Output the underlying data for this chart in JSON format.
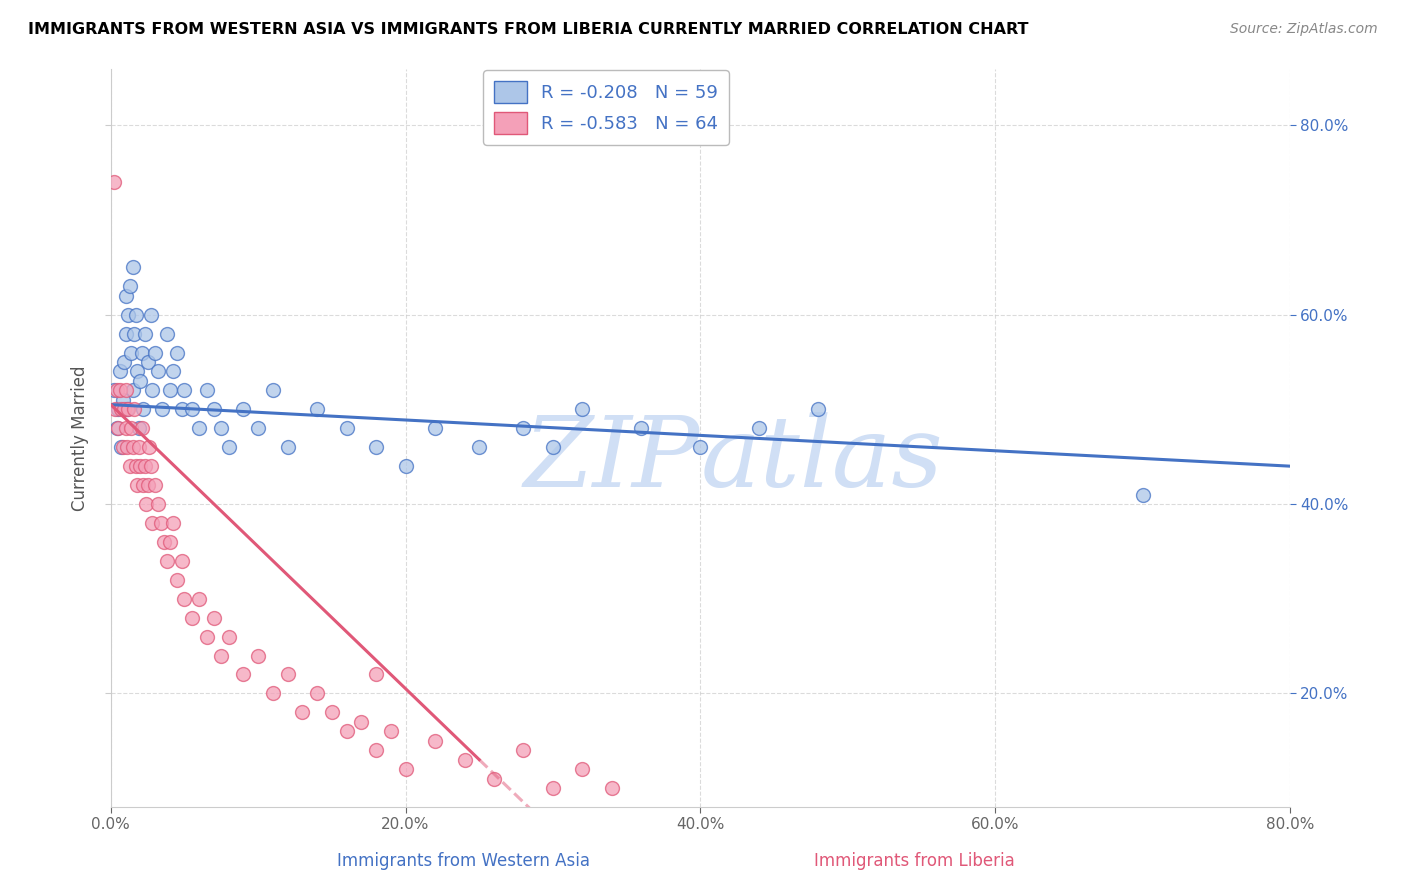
{
  "title": "IMMIGRANTS FROM WESTERN ASIA VS IMMIGRANTS FROM LIBERIA CURRENTLY MARRIED CORRELATION CHART",
  "source": "Source: ZipAtlas.com",
  "ylabel": "Currently Married",
  "xlabel_western": "Immigrants from Western Asia",
  "xlabel_liberia": "Immigrants from Liberia",
  "R_western": -0.208,
  "N_western": 59,
  "R_liberia": -0.583,
  "N_liberia": 64,
  "xlim": [
    0.0,
    0.8
  ],
  "ylim": [
    0.08,
    0.86
  ],
  "color_western": "#adc6e8",
  "color_western_line": "#4472c4",
  "color_liberia": "#f4a0b8",
  "color_liberia_line": "#e05878",
  "watermark_color": "#d0dff5",
  "background_color": "#ffffff",
  "grid_color": "#cccccc",
  "western_x": [
    0.002,
    0.004,
    0.005,
    0.006,
    0.007,
    0.008,
    0.009,
    0.01,
    0.01,
    0.011,
    0.012,
    0.013,
    0.014,
    0.015,
    0.015,
    0.016,
    0.017,
    0.018,
    0.019,
    0.02,
    0.021,
    0.022,
    0.023,
    0.025,
    0.027,
    0.028,
    0.03,
    0.032,
    0.035,
    0.038,
    0.04,
    0.042,
    0.045,
    0.048,
    0.05,
    0.055,
    0.06,
    0.065,
    0.07,
    0.075,
    0.08,
    0.09,
    0.1,
    0.11,
    0.12,
    0.14,
    0.16,
    0.18,
    0.2,
    0.22,
    0.25,
    0.28,
    0.3,
    0.32,
    0.36,
    0.4,
    0.44,
    0.48,
    0.7
  ],
  "western_y": [
    0.52,
    0.48,
    0.5,
    0.54,
    0.46,
    0.51,
    0.55,
    0.58,
    0.62,
    0.5,
    0.6,
    0.63,
    0.56,
    0.65,
    0.52,
    0.58,
    0.6,
    0.54,
    0.48,
    0.53,
    0.56,
    0.5,
    0.58,
    0.55,
    0.6,
    0.52,
    0.56,
    0.54,
    0.5,
    0.58,
    0.52,
    0.54,
    0.56,
    0.5,
    0.52,
    0.5,
    0.48,
    0.52,
    0.5,
    0.48,
    0.46,
    0.5,
    0.48,
    0.52,
    0.46,
    0.5,
    0.48,
    0.46,
    0.44,
    0.48,
    0.46,
    0.48,
    0.46,
    0.5,
    0.48,
    0.46,
    0.48,
    0.5,
    0.41
  ],
  "liberia_x": [
    0.002,
    0.003,
    0.004,
    0.005,
    0.006,
    0.007,
    0.008,
    0.009,
    0.01,
    0.01,
    0.011,
    0.012,
    0.013,
    0.014,
    0.015,
    0.016,
    0.017,
    0.018,
    0.019,
    0.02,
    0.021,
    0.022,
    0.023,
    0.024,
    0.025,
    0.026,
    0.027,
    0.028,
    0.03,
    0.032,
    0.034,
    0.036,
    0.038,
    0.04,
    0.042,
    0.045,
    0.048,
    0.05,
    0.055,
    0.06,
    0.065,
    0.07,
    0.075,
    0.08,
    0.09,
    0.1,
    0.11,
    0.12,
    0.13,
    0.14,
    0.15,
    0.16,
    0.17,
    0.18,
    0.19,
    0.2,
    0.22,
    0.24,
    0.26,
    0.28,
    0.3,
    0.32,
    0.34,
    0.18
  ],
  "liberia_y": [
    0.74,
    0.5,
    0.52,
    0.48,
    0.52,
    0.5,
    0.46,
    0.5,
    0.52,
    0.48,
    0.46,
    0.5,
    0.44,
    0.48,
    0.46,
    0.5,
    0.44,
    0.42,
    0.46,
    0.44,
    0.48,
    0.42,
    0.44,
    0.4,
    0.42,
    0.46,
    0.44,
    0.38,
    0.42,
    0.4,
    0.38,
    0.36,
    0.34,
    0.36,
    0.38,
    0.32,
    0.34,
    0.3,
    0.28,
    0.3,
    0.26,
    0.28,
    0.24,
    0.26,
    0.22,
    0.24,
    0.2,
    0.22,
    0.18,
    0.2,
    0.18,
    0.16,
    0.17,
    0.14,
    0.16,
    0.12,
    0.15,
    0.13,
    0.11,
    0.14,
    0.1,
    0.12,
    0.1,
    0.22
  ]
}
